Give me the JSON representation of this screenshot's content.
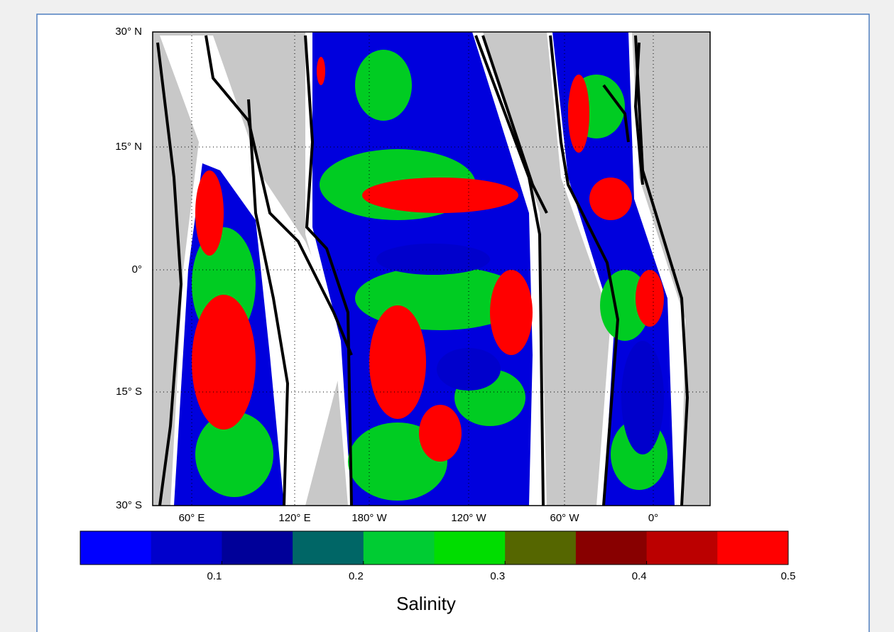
{
  "map": {
    "yticks": [
      "30° N",
      "15° N",
      "0°",
      "15° S",
      "30° S"
    ],
    "xticks": [
      "60° E",
      "120° E",
      "180° W",
      "120° W",
      "60° W",
      "0°"
    ]
  },
  "colorbar": {
    "title": "Salinity",
    "lim": [
      0,
      0.5
    ],
    "ticks": [
      0.1,
      0.2,
      0.3,
      0.4,
      0.5
    ],
    "colors": [
      "#0000ff",
      "#0000cc",
      "#000099",
      "#006666",
      "#00cc33",
      "#00dd00",
      "#556600",
      "#880000",
      "#bb0000",
      "#ff0000"
    ]
  }
}
